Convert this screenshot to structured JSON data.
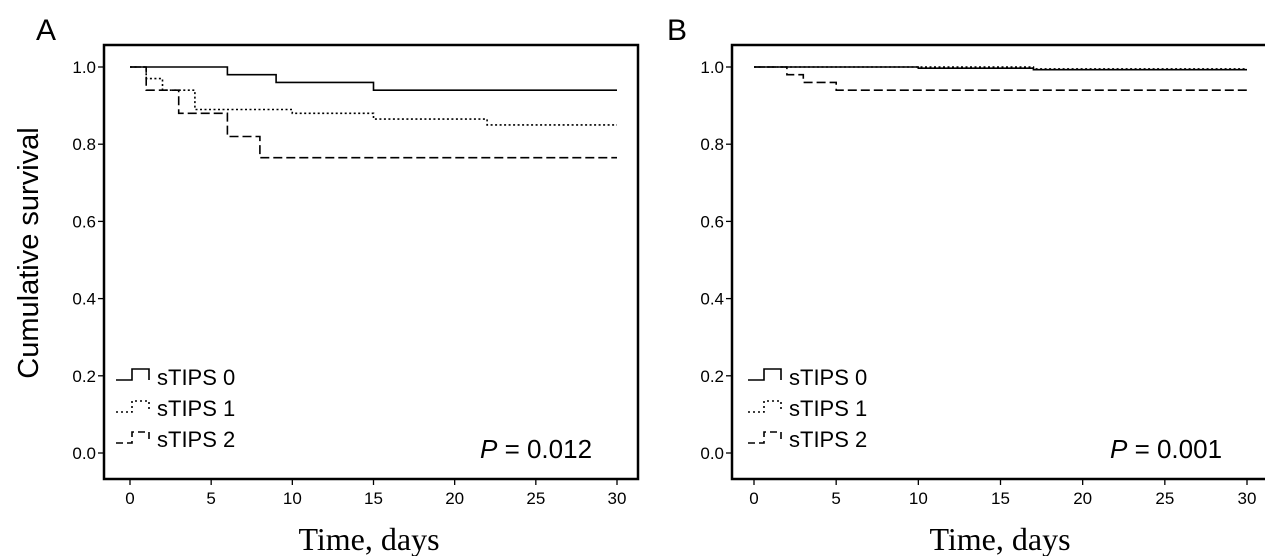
{
  "chart_data": [
    {
      "panel": "A",
      "type": "line",
      "step": true,
      "title": "",
      "xlabel": "Time, days",
      "ylabel": "Cumulative survival",
      "xlim": [
        0,
        30
      ],
      "ylim": [
        0,
        1.0
      ],
      "xticks": [
        0,
        5,
        10,
        15,
        20,
        25,
        30
      ],
      "yticks": [
        "0.0",
        "0.2",
        "0.4",
        "0.6",
        "0.8",
        "1.0"
      ],
      "legend_position": "bottom-left",
      "annotation": {
        "prefix": "P",
        "text": " = 0.012"
      },
      "series": [
        {
          "name": "sTIPS 0",
          "style": "solid",
          "x": [
            0,
            6,
            9,
            15,
            30
          ],
          "y": [
            1.0,
            0.98,
            0.96,
            0.94,
            0.94
          ]
        },
        {
          "name": "sTIPS 1",
          "style": "dotted",
          "x": [
            0,
            1,
            2,
            4,
            10,
            15,
            22,
            30
          ],
          "y": [
            1.0,
            0.97,
            0.94,
            0.89,
            0.88,
            0.865,
            0.85,
            0.85
          ]
        },
        {
          "name": "sTIPS 2",
          "style": "dashed",
          "x": [
            0,
            1,
            3,
            6,
            8,
            30
          ],
          "y": [
            1.0,
            0.94,
            0.88,
            0.82,
            0.765,
            0.765
          ]
        }
      ]
    },
    {
      "panel": "B",
      "type": "line",
      "step": true,
      "title": "",
      "xlabel": "Time, days",
      "ylabel": "",
      "xlim": [
        0,
        30
      ],
      "ylim": [
        0,
        1.0
      ],
      "xticks": [
        0,
        5,
        10,
        15,
        20,
        25,
        30
      ],
      "yticks": [
        "0.0",
        "0.2",
        "0.4",
        "0.6",
        "0.8",
        "1.0"
      ],
      "legend_position": "bottom-left",
      "annotation": {
        "prefix": "P",
        "text": " = 0.001"
      },
      "series": [
        {
          "name": "sTIPS 0",
          "style": "solid",
          "x": [
            0,
            10,
            17,
            30
          ],
          "y": [
            1.0,
            0.997,
            0.993,
            0.993
          ]
        },
        {
          "name": "sTIPS 1",
          "style": "dotted",
          "x": [
            0,
            10,
            17,
            30
          ],
          "y": [
            1.0,
            1.0,
            0.995,
            0.995
          ]
        },
        {
          "name": "sTIPS 2",
          "style": "dashed",
          "x": [
            0,
            2,
            3,
            5,
            30
          ],
          "y": [
            1.0,
            0.98,
            0.96,
            0.94,
            0.94
          ]
        }
      ]
    }
  ]
}
